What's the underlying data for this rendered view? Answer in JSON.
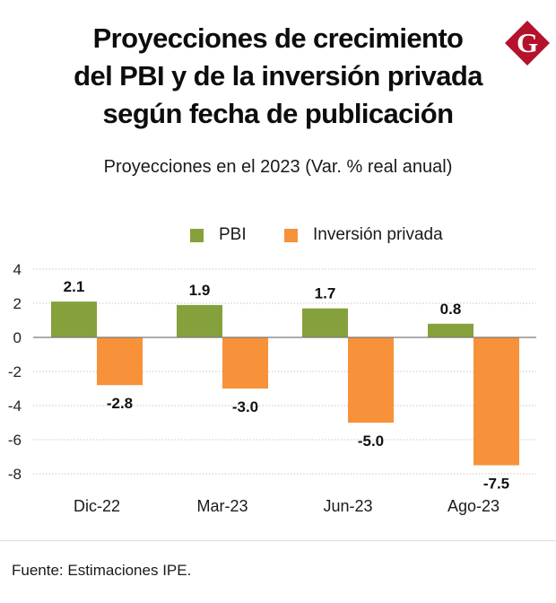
{
  "header": {
    "title_lines": [
      "Proyecciones de crecimiento",
      "del PBI y de la inversión privada",
      "según fecha de publicación"
    ],
    "logo_letter": "G",
    "logo_icon": "gestion-logo-icon"
  },
  "chart_data": {
    "type": "bar",
    "title": "Proyecciones de crecimiento del PBI y de la inversión privada según fecha de publicación",
    "subtitle": "Proyecciones en el 2023 (Var. % real anual)",
    "xlabel": "",
    "ylabel": "",
    "categories": [
      "Dic-22",
      "Mar-23",
      "Jun-23",
      "Ago-23"
    ],
    "series": [
      {
        "name": "PBI",
        "color": "#85a13c",
        "values": [
          2.1,
          1.9,
          1.7,
          0.8
        ],
        "labels": [
          "2.1",
          "1.9",
          "1.7",
          "0.8"
        ]
      },
      {
        "name": "Inversión privada",
        "color": "#f7923a",
        "values": [
          -2.8,
          -3.0,
          -5.0,
          -7.5
        ],
        "labels": [
          "-2.8",
          "-3.0",
          "-5.0",
          "-7.5"
        ]
      }
    ],
    "ylim": [
      -8,
      4
    ],
    "yticks": [
      4,
      2,
      0,
      -2,
      -4,
      -6,
      -8
    ],
    "ytick_labels": [
      "4",
      "2",
      "0",
      "-2",
      "-4",
      "-6",
      "-8"
    ],
    "grid": true,
    "legend_position": "top-center"
  },
  "footer": {
    "source": "Fuente: Estimaciones IPE."
  },
  "colors": {
    "pbi": "#85a13c",
    "inversion": "#f7923a",
    "logo": "#b5122b",
    "grid": "#c8c8c8",
    "zero_line": "#7a7a7a"
  }
}
